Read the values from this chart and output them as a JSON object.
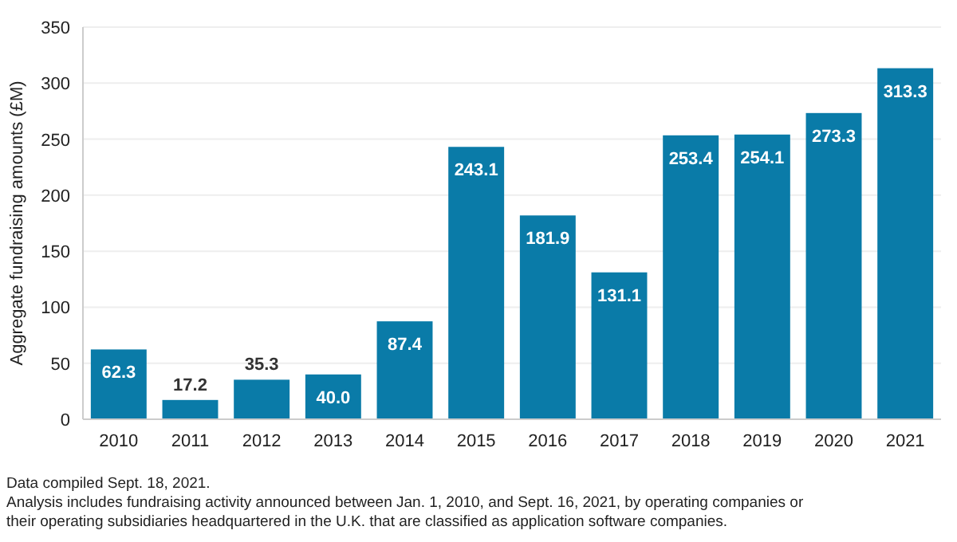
{
  "chart_data": {
    "type": "bar",
    "ylabel": "Aggregate fundraising amounts (£M)",
    "categories": [
      "2010",
      "2011",
      "2012",
      "2013",
      "2014",
      "2015",
      "2016",
      "2017",
      "2018",
      "2019",
      "2020",
      "2021"
    ],
    "values": [
      62.3,
      17.2,
      35.3,
      40.0,
      87.4,
      243.1,
      181.9,
      131.1,
      253.4,
      254.1,
      273.3,
      313.3
    ],
    "value_labels": [
      "62.3",
      "17.2",
      "35.3",
      "40.0",
      "87.4",
      "243.1",
      "181.9",
      "131.1",
      "253.4",
      "254.1",
      "273.3",
      "313.3"
    ],
    "color": "#0a7ba8",
    "ylim": [
      0,
      350
    ],
    "yticks": [
      0,
      50,
      100,
      150,
      200,
      250,
      300,
      350
    ],
    "grid": "y",
    "annotations": [
      "Data compiled Sept. 18, 2021.",
      "Analysis includes fundraising activity announced between Jan. 1, 2010, and Sept. 16, 2021, by operating companies or their operating subsidiaries headquartered in the U.K. that are classified as application software companies."
    ]
  }
}
